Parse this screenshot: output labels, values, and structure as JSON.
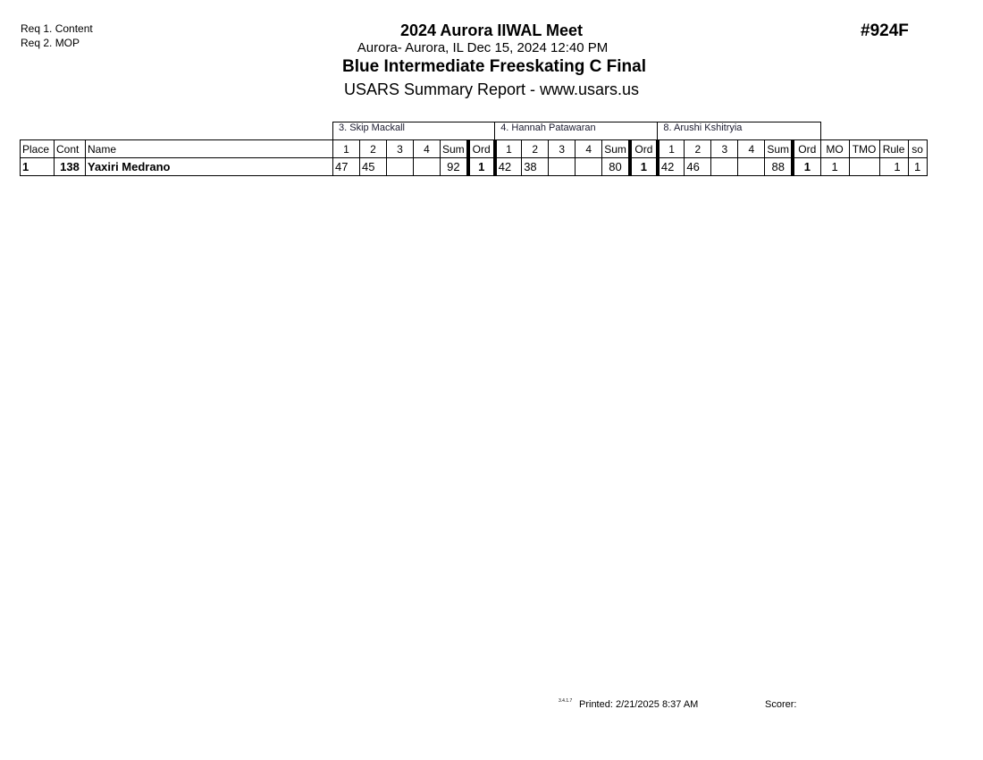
{
  "header": {
    "requirements": [
      "Req  1.  Content",
      "Req  2.  MOP"
    ],
    "meet_title": "2024 Aurora IIWAL Meet",
    "location_date": "Aurora- Aurora, IL  Dec 15, 2024  12:40 PM",
    "event_title": "Blue Intermediate Freeskating C Final",
    "report_title": "USARS Summary Report - www.usars.us",
    "event_code": "#924F"
  },
  "table": {
    "judges": [
      "3.  Skip Mackall",
      "4.  Hannah  Patawaran",
      "8.  Arushi Kshitryia"
    ],
    "columns": {
      "place": "Place",
      "cont": "Cont",
      "name": "Name",
      "j": [
        "1",
        "2",
        "3",
        "4",
        "Sum",
        "Ord"
      ],
      "mo": "MO",
      "tmo": "TMO",
      "rule": "Rule",
      "so": "so"
    },
    "rows": [
      {
        "place": "1",
        "cont": "138",
        "name": "Yaxiri Medrano",
        "judges": [
          [
            "47",
            "45",
            "",
            "",
            "92",
            "1"
          ],
          [
            "42",
            "38",
            "",
            "",
            "80",
            "1"
          ],
          [
            "42",
            "46",
            "",
            "",
            "88",
            "1"
          ]
        ],
        "mo": "1",
        "tmo": "",
        "rule": "1",
        "so": "1"
      }
    ]
  },
  "footer": {
    "version": "3.4.1.7",
    "printed": "Printed:  2/21/2025  8:37 AM",
    "scorer": "Scorer:"
  }
}
